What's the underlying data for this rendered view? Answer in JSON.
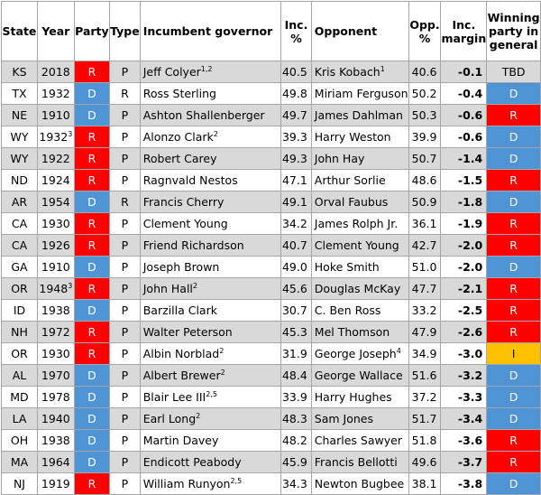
{
  "headers": {
    "state": "State",
    "year": "Year",
    "party": "Party",
    "type": "Type",
    "governor": "Incumbent governor",
    "inc_pct": "Inc. %",
    "opponent": "Opponent",
    "opp_pct": "Opp. %",
    "margin": "Inc. margin",
    "winning": "Winning party in general"
  },
  "rows": [
    {
      "state": "KS",
      "year": "2018",
      "year_sup": "",
      "party": "R",
      "type": "P",
      "governor": "Jeff Colyer",
      "gov_sup": "1,2",
      "inc_pct": "40.5",
      "opponent": "Kris Kobach",
      "opp_sup": "1",
      "opp_pct": "40.6",
      "margin": "-0.1",
      "winner": "TBD"
    },
    {
      "state": "TX",
      "year": "1932",
      "year_sup": "",
      "party": "D",
      "type": "R",
      "governor": "Ross Sterling",
      "gov_sup": "",
      "inc_pct": "49.8",
      "opponent": "Miriam Ferguson",
      "opp_sup": "",
      "opp_pct": "50.2",
      "margin": "-0.4",
      "winner": "D"
    },
    {
      "state": "NE",
      "year": "1910",
      "year_sup": "",
      "party": "D",
      "type": "P",
      "governor": "Ashton Shallenberger",
      "gov_sup": "",
      "inc_pct": "49.7",
      "opponent": "James Dahlman",
      "opp_sup": "",
      "opp_pct": "50.3",
      "margin": "-0.6",
      "winner": "R"
    },
    {
      "state": "WY",
      "year": "1932",
      "year_sup": "3",
      "party": "R",
      "type": "P",
      "governor": "Alonzo Clark",
      "gov_sup": "2",
      "inc_pct": "39.3",
      "opponent": "Harry Weston",
      "opp_sup": "",
      "opp_pct": "39.9",
      "margin": "-0.6",
      "winner": "D"
    },
    {
      "state": "WY",
      "year": "1922",
      "year_sup": "",
      "party": "R",
      "type": "P",
      "governor": "Robert Carey",
      "gov_sup": "",
      "inc_pct": "49.3",
      "opponent": "John Hay",
      "opp_sup": "",
      "opp_pct": "50.7",
      "margin": "-1.4",
      "winner": "D"
    },
    {
      "state": "ND",
      "year": "1924",
      "year_sup": "",
      "party": "R",
      "type": "P",
      "governor": "Ragnvald Nestos",
      "gov_sup": "",
      "inc_pct": "47.1",
      "opponent": "Arthur Sorlie",
      "opp_sup": "",
      "opp_pct": "48.6",
      "margin": "-1.5",
      "winner": "R"
    },
    {
      "state": "AR",
      "year": "1954",
      "year_sup": "",
      "party": "D",
      "type": "R",
      "governor": "Francis Cherry",
      "gov_sup": "",
      "inc_pct": "49.1",
      "opponent": "Orval Faubus",
      "opp_sup": "",
      "opp_pct": "50.9",
      "margin": "-1.8",
      "winner": "D"
    },
    {
      "state": "CA",
      "year": "1930",
      "year_sup": "",
      "party": "R",
      "type": "P",
      "governor": "Clement Young",
      "gov_sup": "",
      "inc_pct": "34.2",
      "opponent": "James Rolph Jr.",
      "opp_sup": "",
      "opp_pct": "36.1",
      "margin": "-1.9",
      "winner": "R"
    },
    {
      "state": "CA",
      "year": "1926",
      "year_sup": "",
      "party": "R",
      "type": "P",
      "governor": "Friend Richardson",
      "gov_sup": "",
      "inc_pct": "40.7",
      "opponent": "Clement Young",
      "opp_sup": "",
      "opp_pct": "42.7",
      "margin": "-2.0",
      "winner": "R"
    },
    {
      "state": "GA",
      "year": "1910",
      "year_sup": "",
      "party": "D",
      "type": "P",
      "governor": "Joseph Brown",
      "gov_sup": "",
      "inc_pct": "49.0",
      "opponent": "Hoke Smith",
      "opp_sup": "",
      "opp_pct": "51.0",
      "margin": "-2.0",
      "winner": "D"
    },
    {
      "state": "OR",
      "year": "1948",
      "year_sup": "3",
      "party": "R",
      "type": "P",
      "governor": "John Hall",
      "gov_sup": "2",
      "inc_pct": "45.6",
      "opponent": "Douglas McKay",
      "opp_sup": "",
      "opp_pct": "47.7",
      "margin": "-2.1",
      "winner": "R"
    },
    {
      "state": "ID",
      "year": "1938",
      "year_sup": "",
      "party": "D",
      "type": "P",
      "governor": "Barzilla Clark",
      "gov_sup": "",
      "inc_pct": "30.7",
      "opponent": "C. Ben Ross",
      "opp_sup": "",
      "opp_pct": "33.2",
      "margin": "-2.5",
      "winner": "R"
    },
    {
      "state": "NH",
      "year": "1972",
      "year_sup": "",
      "party": "R",
      "type": "P",
      "governor": "Walter Peterson",
      "gov_sup": "",
      "inc_pct": "45.3",
      "opponent": "Mel Thomson",
      "opp_sup": "",
      "opp_pct": "47.9",
      "margin": "-2.6",
      "winner": "R"
    },
    {
      "state": "OR",
      "year": "1930",
      "year_sup": "",
      "party": "R",
      "type": "P",
      "governor": "Albin Norblad",
      "gov_sup": "2",
      "inc_pct": "31.9",
      "opponent": "George Joseph",
      "opp_sup": "4",
      "opp_pct": "34.9",
      "margin": "-3.0",
      "winner": "I"
    },
    {
      "state": "AL",
      "year": "1970",
      "year_sup": "",
      "party": "D",
      "type": "P",
      "governor": "Albert Brewer",
      "gov_sup": "2",
      "inc_pct": "48.4",
      "opponent": "George Wallace",
      "opp_sup": "",
      "opp_pct": "51.6",
      "margin": "-3.2",
      "winner": "D"
    },
    {
      "state": "MD",
      "year": "1978",
      "year_sup": "",
      "party": "D",
      "type": "P",
      "governor": "Blair Lee III",
      "gov_sup": "2,5",
      "inc_pct": "33.9",
      "opponent": "Harry Hughes",
      "opp_sup": "",
      "opp_pct": "37.2",
      "margin": "-3.3",
      "winner": "D"
    },
    {
      "state": "LA",
      "year": "1940",
      "year_sup": "",
      "party": "D",
      "type": "P",
      "governor": "Earl Long",
      "gov_sup": "2",
      "inc_pct": "48.3",
      "opponent": "Sam Jones",
      "opp_sup": "",
      "opp_pct": "51.7",
      "margin": "-3.4",
      "winner": "D"
    },
    {
      "state": "OH",
      "year": "1938",
      "year_sup": "",
      "party": "D",
      "type": "P",
      "governor": "Martin Davey",
      "gov_sup": "",
      "inc_pct": "48.2",
      "opponent": "Charles Sawyer",
      "opp_sup": "",
      "opp_pct": "51.8",
      "margin": "-3.6",
      "winner": "R"
    },
    {
      "state": "MA",
      "year": "1964",
      "year_sup": "",
      "party": "D",
      "type": "P",
      "governor": "Endicott Peabody",
      "gov_sup": "",
      "inc_pct": "45.9",
      "opponent": "Francis Bellotti",
      "opp_sup": "",
      "opp_pct": "49.6",
      "margin": "-3.7",
      "winner": "R"
    },
    {
      "state": "NJ",
      "year": "1919",
      "year_sup": "",
      "party": "R",
      "type": "P",
      "governor": "William Runyon",
      "gov_sup": "2,5",
      "inc_pct": "34.3",
      "opponent": "Newton Bugbee",
      "opp_sup": "",
      "opp_pct": "38.1",
      "margin": "-3.8",
      "winner": "D"
    }
  ],
  "colors": {
    "republican": "#ff0000",
    "democratic": "#4f95d6",
    "independent": "#ffc000",
    "alt_row": "#d9d9d9",
    "border": "#a6a6a6"
  }
}
